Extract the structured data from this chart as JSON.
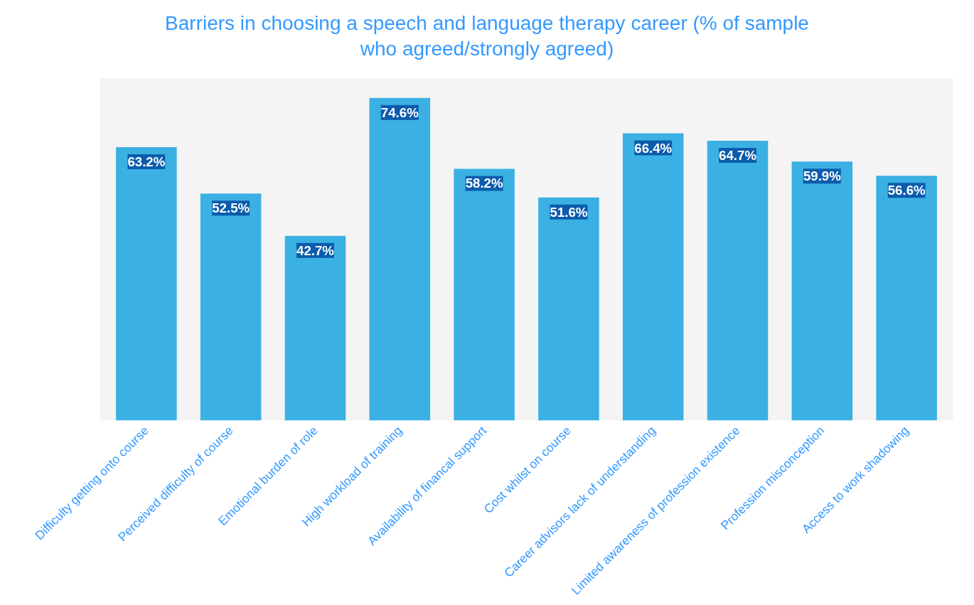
{
  "chart_data": {
    "type": "bar",
    "title": "Barriers in choosing a speech and language therapy career (% of sample who agreed/strongly agreed)",
    "categories": [
      "Difficulty getting onto course",
      "Perceived difficulty of course",
      "Emotional burden of role",
      "High workload of training",
      "Availability of financal support",
      "Cost whilst on course",
      "Career advisors lack of understanding",
      "Limited awareness of profession existence",
      "Profession misconception",
      "Access to work shadowing"
    ],
    "values": [
      63.2,
      52.5,
      42.7,
      74.6,
      58.2,
      51.6,
      66.4,
      64.7,
      59.9,
      56.6
    ],
    "value_labels": [
      "63.2%",
      "52.5%",
      "42.7%",
      "74.6%",
      "58.2%",
      "51.6%",
      "66.4%",
      "64.7%",
      "59.9%",
      "56.6%"
    ],
    "color": "#3bb1e3",
    "tick_labels": "x",
    "grid": false
  }
}
